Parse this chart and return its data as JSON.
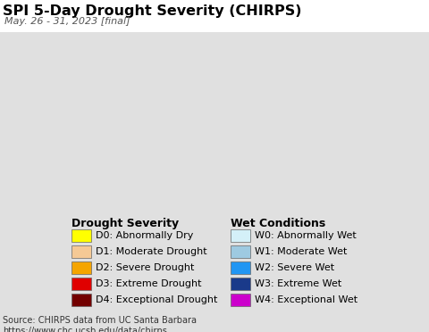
{
  "title": "SPI 5-Day Drought Severity (CHIRPS)",
  "subtitle": "May. 26 - 31, 2023 [final]",
  "map_image_url": "https://www.chc.ucsb.edu/data/chirps",
  "map_bg_color": "#aae4f0",
  "legend_bg_color": "#e0e0e0",
  "top_bg_color": "#ffffff",
  "source_text": "Source: CHIRPS data from UC Santa Barbara\nhttps://www.chc.ucsb.edu/data/chirps",
  "drought_title": "Drought Severity",
  "wet_title": "Wet Conditions",
  "drought_items": [
    {
      "code": "D0",
      "label": "Abnormally Dry",
      "color": "#ffff00"
    },
    {
      "code": "D1",
      "label": "Moderate Drought",
      "color": "#f5c995"
    },
    {
      "code": "D2",
      "label": "Severe Drought",
      "color": "#f5a500"
    },
    {
      "code": "D3",
      "label": "Extreme Drought",
      "color": "#e00000"
    },
    {
      "code": "D4",
      "label": "Exceptional Drought",
      "color": "#730000"
    }
  ],
  "wet_items": [
    {
      "code": "W0",
      "label": "Abnormally Wet",
      "color": "#d4f0f8"
    },
    {
      "code": "W1",
      "label": "Moderate Wet",
      "color": "#9ecae1"
    },
    {
      "code": "W2",
      "label": "Severe Wet",
      "color": "#2196f3"
    },
    {
      "code": "W3",
      "label": "Extreme Wet",
      "color": "#1a3a8a"
    },
    {
      "code": "W4",
      "label": "Exceptional Wet",
      "color": "#cc00cc"
    }
  ],
  "title_fontsize": 11.5,
  "subtitle_fontsize": 8,
  "legend_title_fontsize": 9,
  "legend_item_fontsize": 8,
  "source_fontsize": 7
}
